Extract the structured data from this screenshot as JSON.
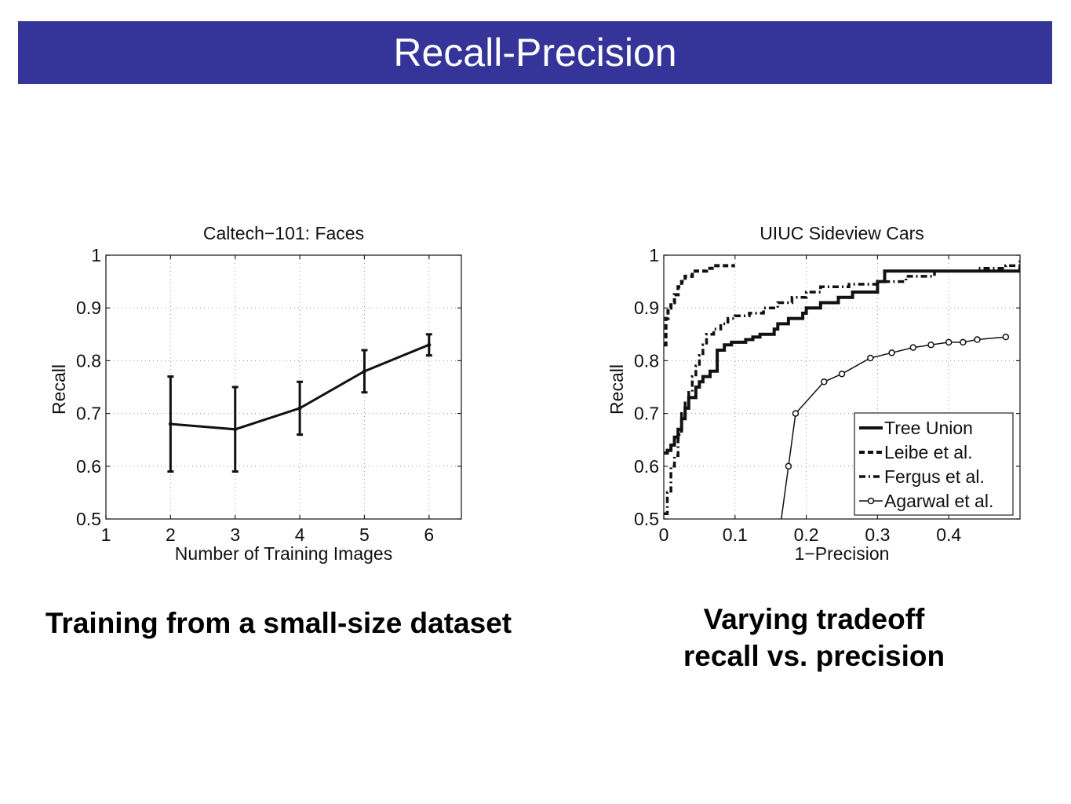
{
  "slide": {
    "title": "Recall-Precision",
    "caption_left": "Training from a small-size dataset",
    "caption_right_line1": "Varying tradeoff",
    "caption_right_line2": "recall vs. precision",
    "title_bar_color": "#343499"
  },
  "chart_data": [
    {
      "type": "line",
      "title": "Caltech−101: Faces",
      "xlabel": "Number of Training Images",
      "ylabel": "Recall",
      "xlim": [
        1,
        6.5
      ],
      "ylim": [
        0.5,
        1
      ],
      "xticks": [
        1,
        2,
        3,
        4,
        5,
        6
      ],
      "yticks": [
        0.5,
        0.6,
        0.7,
        0.8,
        0.9,
        1
      ],
      "ytick_labels": [
        "0.5",
        "0.6",
        "0.7",
        "0.8",
        "0.9",
        "1"
      ],
      "grid": true,
      "series": [
        {
          "x": [
            2,
            3,
            4,
            5,
            6
          ],
          "y": [
            0.68,
            0.67,
            0.71,
            0.78,
            0.83
          ],
          "yerr_low": [
            0.59,
            0.59,
            0.66,
            0.74,
            0.81
          ],
          "yerr_high": [
            0.77,
            0.75,
            0.76,
            0.82,
            0.85
          ]
        }
      ]
    },
    {
      "type": "line",
      "title": "UIUC Sideview Cars",
      "xlabel": "1−Precision",
      "ylabel": "Recall",
      "xlim": [
        0,
        0.5
      ],
      "ylim": [
        0.5,
        1
      ],
      "xticks": [
        0,
        0.1,
        0.2,
        0.3,
        0.4
      ],
      "xtick_labels": [
        "0",
        "0.1",
        "0.2",
        "0.3",
        "0.4"
      ],
      "yticks": [
        0.5,
        0.6,
        0.7,
        0.8,
        0.9,
        1
      ],
      "ytick_labels": [
        "0.5",
        "0.6",
        "0.7",
        "0.8",
        "0.9",
        "1"
      ],
      "grid": true,
      "legend_position": "bottom-right",
      "series": [
        {
          "name": "Tree Union",
          "style": "solid-thick",
          "x": [
            0.0,
            0.005,
            0.01,
            0.015,
            0.02,
            0.025,
            0.03,
            0.035,
            0.045,
            0.05,
            0.055,
            0.065,
            0.075,
            0.085,
            0.095,
            0.105,
            0.115,
            0.125,
            0.135,
            0.145,
            0.155,
            0.16,
            0.175,
            0.185,
            0.195,
            0.2,
            0.22,
            0.245,
            0.265,
            0.3,
            0.31,
            0.35,
            0.42,
            0.48,
            0.5
          ],
          "y": [
            0.625,
            0.63,
            0.64,
            0.655,
            0.67,
            0.69,
            0.71,
            0.73,
            0.75,
            0.76,
            0.77,
            0.78,
            0.82,
            0.83,
            0.835,
            0.835,
            0.84,
            0.845,
            0.85,
            0.85,
            0.86,
            0.87,
            0.88,
            0.88,
            0.89,
            0.9,
            0.91,
            0.92,
            0.93,
            0.95,
            0.97,
            0.97,
            0.97,
            0.97,
            0.98
          ]
        },
        {
          "name": "Leibe et al.",
          "style": "dashed",
          "x": [
            0.0,
            0.003,
            0.006,
            0.01,
            0.015,
            0.02,
            0.025,
            0.03,
            0.04,
            0.06,
            0.07,
            0.08,
            0.1
          ],
          "y": [
            0.83,
            0.88,
            0.9,
            0.91,
            0.925,
            0.94,
            0.95,
            0.96,
            0.97,
            0.975,
            0.98,
            0.98,
            0.98
          ]
        },
        {
          "name": "Fergus et al.",
          "style": "dashdot",
          "x": [
            0.0,
            0.005,
            0.01,
            0.015,
            0.02,
            0.025,
            0.03,
            0.035,
            0.04,
            0.045,
            0.05,
            0.055,
            0.06,
            0.07,
            0.08,
            0.09,
            0.1,
            0.12,
            0.14,
            0.16,
            0.18,
            0.2,
            0.22,
            0.26,
            0.3,
            0.34,
            0.38,
            0.44,
            0.48,
            0.5
          ],
          "y": [
            0.51,
            0.55,
            0.6,
            0.62,
            0.66,
            0.7,
            0.72,
            0.74,
            0.77,
            0.79,
            0.81,
            0.83,
            0.85,
            0.86,
            0.87,
            0.88,
            0.885,
            0.89,
            0.9,
            0.91,
            0.92,
            0.93,
            0.94,
            0.945,
            0.95,
            0.96,
            0.97,
            0.975,
            0.98,
            0.99
          ]
        },
        {
          "name": "Agarwal et al.",
          "style": "circle-marker",
          "x": [
            0.165,
            0.175,
            0.185,
            0.225,
            0.25,
            0.29,
            0.32,
            0.35,
            0.375,
            0.4,
            0.42,
            0.44,
            0.48
          ],
          "y": [
            0.5,
            0.6,
            0.7,
            0.76,
            0.775,
            0.805,
            0.815,
            0.825,
            0.83,
            0.835,
            0.835,
            0.84,
            0.845
          ]
        }
      ]
    }
  ]
}
